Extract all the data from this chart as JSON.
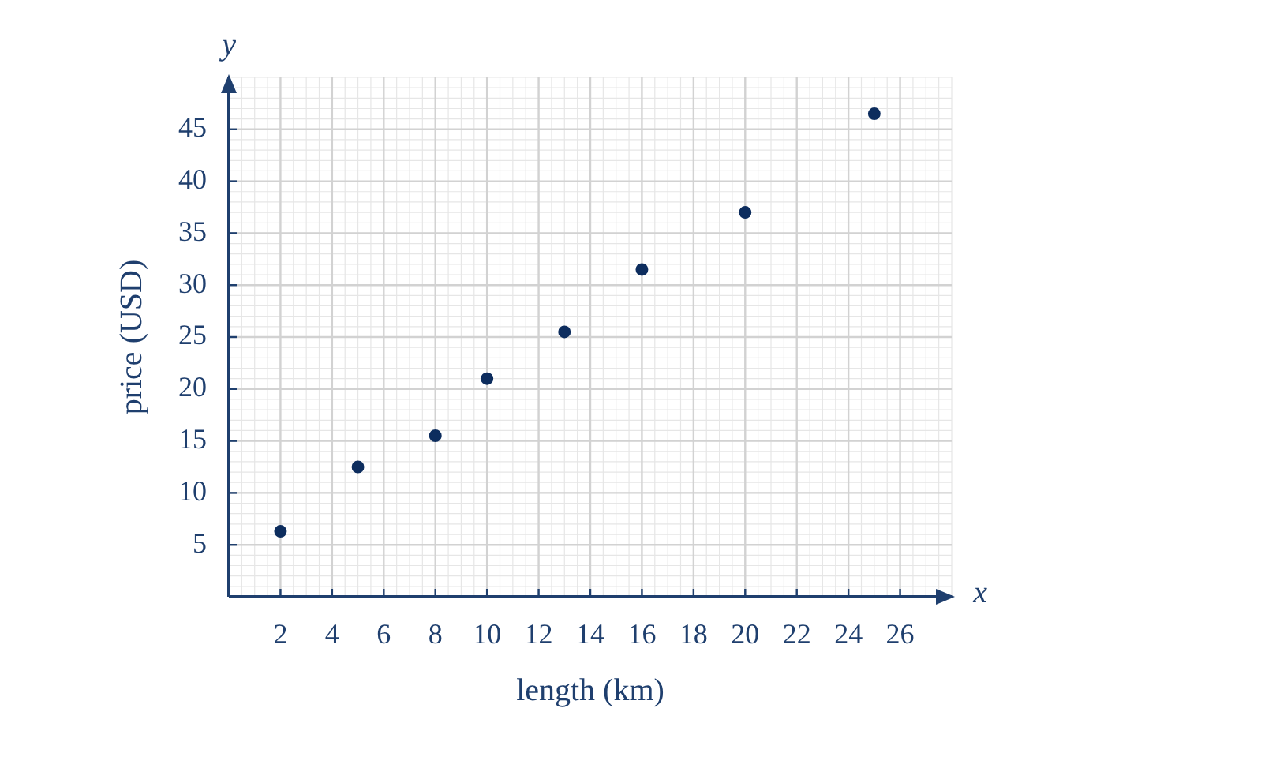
{
  "chart_data": {
    "type": "scatter",
    "xlabel": "length (km)",
    "ylabel": "price (USD)",
    "annotations": [
      "x",
      "y"
    ],
    "x": [
      2,
      5,
      8,
      10,
      13,
      16,
      20,
      25
    ],
    "series": [
      {
        "color": "#0d2d5e",
        "values": [
          6.3,
          12.5,
          15.5,
          21,
          25.5,
          31.5,
          37,
          46.5
        ]
      }
    ],
    "xlim": [
      0,
      28
    ],
    "ylim": [
      0,
      50
    ],
    "xticks": [
      2,
      4,
      6,
      8,
      10,
      12,
      14,
      16,
      18,
      20,
      22,
      24,
      26
    ],
    "yticks": [
      5,
      10,
      15,
      20,
      25,
      30,
      35,
      40,
      45
    ],
    "grid": true,
    "marker": "circle",
    "legend": false
  }
}
